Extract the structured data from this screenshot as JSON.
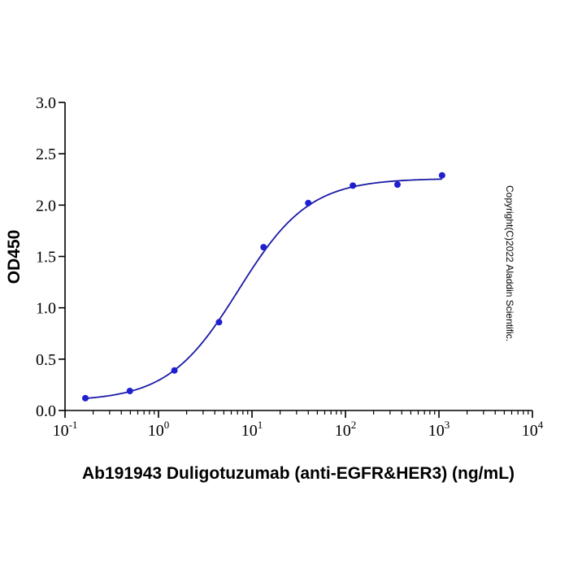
{
  "chart_data": {
    "type": "scatter",
    "title": "",
    "xlabel": "Ab191943 Duligotuzumab (anti-EGFR&HER3) (ng/mL)",
    "ylabel": "OD450",
    "x_scale": "log",
    "xlim": [
      0.1,
      10000
    ],
    "ylim": [
      0,
      3.0
    ],
    "x_ticks": [
      {
        "value": 0.1,
        "base": "10",
        "exp": "-1"
      },
      {
        "value": 1,
        "base": "10",
        "exp": "0"
      },
      {
        "value": 10,
        "base": "10",
        "exp": "1"
      },
      {
        "value": 100,
        "base": "10",
        "exp": "2"
      },
      {
        "value": 1000,
        "base": "10",
        "exp": "3"
      },
      {
        "value": 10000,
        "base": "10",
        "exp": "4"
      }
    ],
    "y_ticks": [
      "0.0",
      "0.5",
      "1.0",
      "1.5",
      "2.0",
      "2.5",
      "3.0"
    ],
    "grid": false,
    "series": [
      {
        "points": [
          {
            "x": 0.165,
            "y": 0.12
          },
          {
            "x": 0.494,
            "y": 0.19
          },
          {
            "x": 1.48,
            "y": 0.39
          },
          {
            "x": 4.44,
            "y": 0.86
          },
          {
            "x": 13.3,
            "y": 1.59
          },
          {
            "x": 40.0,
            "y": 2.02
          },
          {
            "x": 120,
            "y": 2.19
          },
          {
            "x": 360,
            "y": 2.2
          },
          {
            "x": 1080,
            "y": 2.29
          }
        ],
        "fit": {
          "model": "4PL",
          "bottom": 0.09,
          "top": 2.26,
          "ec50": 7.2,
          "hill": 1.15,
          "x_range": [
            0.165,
            1080
          ]
        }
      }
    ],
    "color": "#1a1aa6",
    "point_color": "#1f1fd0",
    "annotation": "Copyright(C)2022 Aladdin Scientific."
  }
}
